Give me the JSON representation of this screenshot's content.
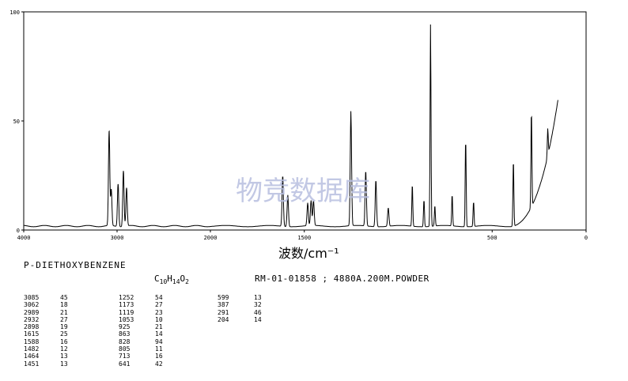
{
  "watermark": "物竞数据库",
  "compound_name": "P-DIETHOXYBENZENE",
  "formula": {
    "c": "C",
    "c_n": "10",
    "h": "H",
    "h_n": "14",
    "o": "O",
    "o_n": "2"
  },
  "sample_info": "RM-01-01858 ; 4880A.200M.POWDER",
  "chart_data": {
    "type": "line",
    "title": "",
    "xlabel": "波数/cm⁻¹",
    "ylabel": "",
    "xlim": [
      4000,
      0
    ],
    "ylim": [
      0,
      100
    ],
    "x_ticks": [
      4000,
      3000,
      2000,
      1500,
      500,
      0
    ],
    "x_tick_labels": [
      "4000",
      "3000",
      "2000",
      "1500",
      "500",
      "0"
    ],
    "y_ticks": [
      0,
      50,
      100
    ],
    "y_tick_labels": [
      "0",
      "50",
      "100"
    ],
    "grid": false,
    "peaks": [
      {
        "x": 3085,
        "y": 45
      },
      {
        "x": 3062,
        "y": 18
      },
      {
        "x": 2989,
        "y": 21
      },
      {
        "x": 2932,
        "y": 27
      },
      {
        "x": 2898,
        "y": 19
      },
      {
        "x": 1615,
        "y": 25
      },
      {
        "x": 1588,
        "y": 16
      },
      {
        "x": 1482,
        "y": 12
      },
      {
        "x": 1464,
        "y": 13
      },
      {
        "x": 1451,
        "y": 13
      },
      {
        "x": 1252,
        "y": 54
      },
      {
        "x": 1173,
        "y": 27
      },
      {
        "x": 1119,
        "y": 23
      },
      {
        "x": 1053,
        "y": 10
      },
      {
        "x": 925,
        "y": 21
      },
      {
        "x": 863,
        "y": 14
      },
      {
        "x": 828,
        "y": 94
      },
      {
        "x": 805,
        "y": 11
      },
      {
        "x": 713,
        "y": 16
      },
      {
        "x": 641,
        "y": 42
      },
      {
        "x": 599,
        "y": 13
      },
      {
        "x": 387,
        "y": 32
      },
      {
        "x": 291,
        "y": 46
      },
      {
        "x": 204,
        "y": 14
      }
    ]
  },
  "peak_table": [
    [
      [
        "3085",
        "45"
      ],
      [
        "3062",
        "18"
      ],
      [
        "2989",
        "21"
      ],
      [
        "2932",
        "27"
      ],
      [
        "2898",
        "19"
      ],
      [
        "1615",
        "25"
      ],
      [
        "1588",
        "16"
      ],
      [
        "1482",
        "12"
      ],
      [
        "1464",
        "13"
      ],
      [
        "1451",
        "13"
      ]
    ],
    [
      [
        "1252",
        "54"
      ],
      [
        "1173",
        "27"
      ],
      [
        "1119",
        "23"
      ],
      [
        "1053",
        "10"
      ],
      [
        "925",
        "21"
      ],
      [
        "863",
        "14"
      ],
      [
        "828",
        "94"
      ],
      [
        "805",
        "11"
      ],
      [
        "713",
        "16"
      ],
      [
        "641",
        "42"
      ]
    ],
    [
      [
        "599",
        "13"
      ],
      [
        "387",
        "32"
      ],
      [
        "291",
        "46"
      ],
      [
        "204",
        "14"
      ]
    ]
  ]
}
